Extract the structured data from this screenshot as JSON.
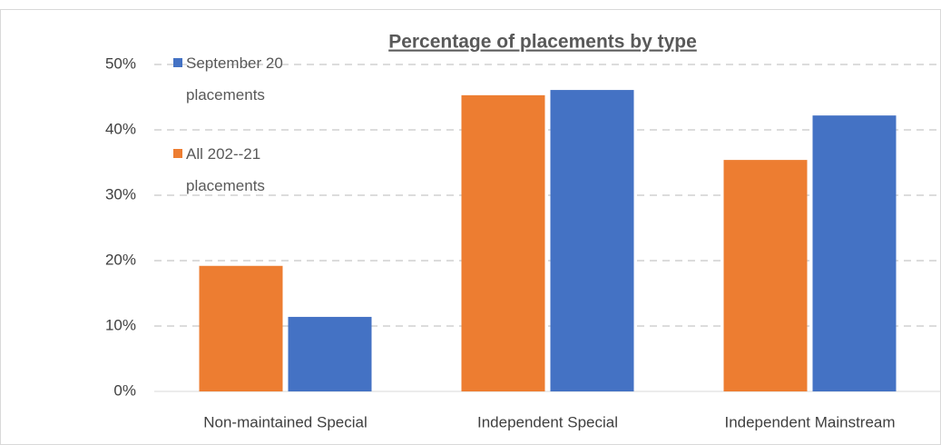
{
  "chart_data": {
    "type": "bar",
    "title": "Percentage of placements by type",
    "categories": [
      "Non-maintained Special",
      "Independent Special",
      "Independent Mainstream"
    ],
    "series": [
      {
        "name": "All 202--21 placements",
        "color": "#ed7d31",
        "values": [
          19.2,
          45.3,
          35.4
        ]
      },
      {
        "name": "September 20 placements",
        "color": "#4472c4",
        "values": [
          11.4,
          46.1,
          42.2
        ]
      }
    ],
    "ylim": [
      0,
      50
    ],
    "yticks": [
      {
        "value": 0,
        "label": "0%"
      },
      {
        "value": 10,
        "label": "10%"
      },
      {
        "value": 20,
        "label": "20%"
      },
      {
        "value": 30,
        "label": "30%"
      },
      {
        "value": 40,
        "label": "40%"
      },
      {
        "value": 50,
        "label": "50%"
      }
    ],
    "grid": true
  }
}
